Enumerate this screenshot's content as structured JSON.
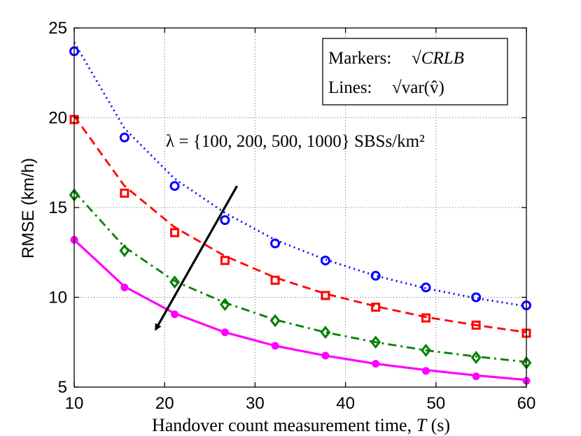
{
  "chart_data": {
    "type": "line",
    "title": "",
    "xlabel": "Handover count measurement time, T (s)",
    "ylabel": "RMSE (km/h)",
    "xlim": [
      10,
      60
    ],
    "ylim": [
      5,
      25
    ],
    "xticks": [
      10,
      20,
      30,
      40,
      50,
      60
    ],
    "yticks": [
      5,
      10,
      15,
      20,
      25
    ],
    "grid": true,
    "legend": {
      "placement": "top-right",
      "markers_label": "Markers:",
      "markers_expr": "√CRLB",
      "lines_label": "Lines:",
      "lines_expr": "√var(v̂)"
    },
    "annotation": {
      "text": "λ = {100, 200, 500, 1000} SBSs/km²",
      "arrow_from": [
        28,
        16.2
      ],
      "arrow_to": [
        19,
        8.2
      ]
    },
    "marker_x": [
      10,
      15.56,
      21.11,
      26.67,
      32.22,
      37.78,
      43.33,
      48.89,
      54.44,
      60
    ],
    "series": [
      {
        "name": "λ = 100",
        "color": "#0000ff",
        "line_style": "dotted",
        "marker": "circle",
        "line_values": [
          24.2,
          19.4,
          16.6,
          14.7,
          13.2,
          12.1,
          11.2,
          10.5,
          9.95,
          9.5
        ],
        "marker_values": [
          23.7,
          18.9,
          16.2,
          14.3,
          13.0,
          12.05,
          11.2,
          10.55,
          10.0,
          9.55
        ]
      },
      {
        "name": "λ = 200",
        "color": "#ff0000",
        "line_style": "dashed",
        "marker": "square",
        "line_values": [
          20.1,
          16.2,
          13.9,
          12.3,
          11.1,
          10.2,
          9.5,
          8.9,
          8.45,
          8.05
        ],
        "marker_values": [
          19.9,
          15.8,
          13.6,
          12.05,
          10.95,
          10.1,
          9.45,
          8.85,
          8.45,
          8.0
        ]
      },
      {
        "name": "λ = 500",
        "color": "#008000",
        "line_style": "dashdot",
        "marker": "diamond",
        "line_values": [
          15.9,
          12.8,
          10.9,
          9.7,
          8.75,
          8.05,
          7.5,
          7.05,
          6.7,
          6.4
        ],
        "marker_values": [
          15.7,
          12.6,
          10.85,
          9.6,
          8.7,
          8.05,
          7.5,
          7.05,
          6.65,
          6.35
        ]
      },
      {
        "name": "λ = 1000",
        "color": "#ff00ff",
        "line_style": "solid",
        "marker": "dot",
        "line_values": [
          13.2,
          10.6,
          9.1,
          8.05,
          7.3,
          6.75,
          6.3,
          5.95,
          5.65,
          5.4
        ],
        "marker_values": [
          13.2,
          10.55,
          9.05,
          8.05,
          7.3,
          6.75,
          6.3,
          5.9,
          5.6,
          5.35
        ]
      }
    ]
  }
}
